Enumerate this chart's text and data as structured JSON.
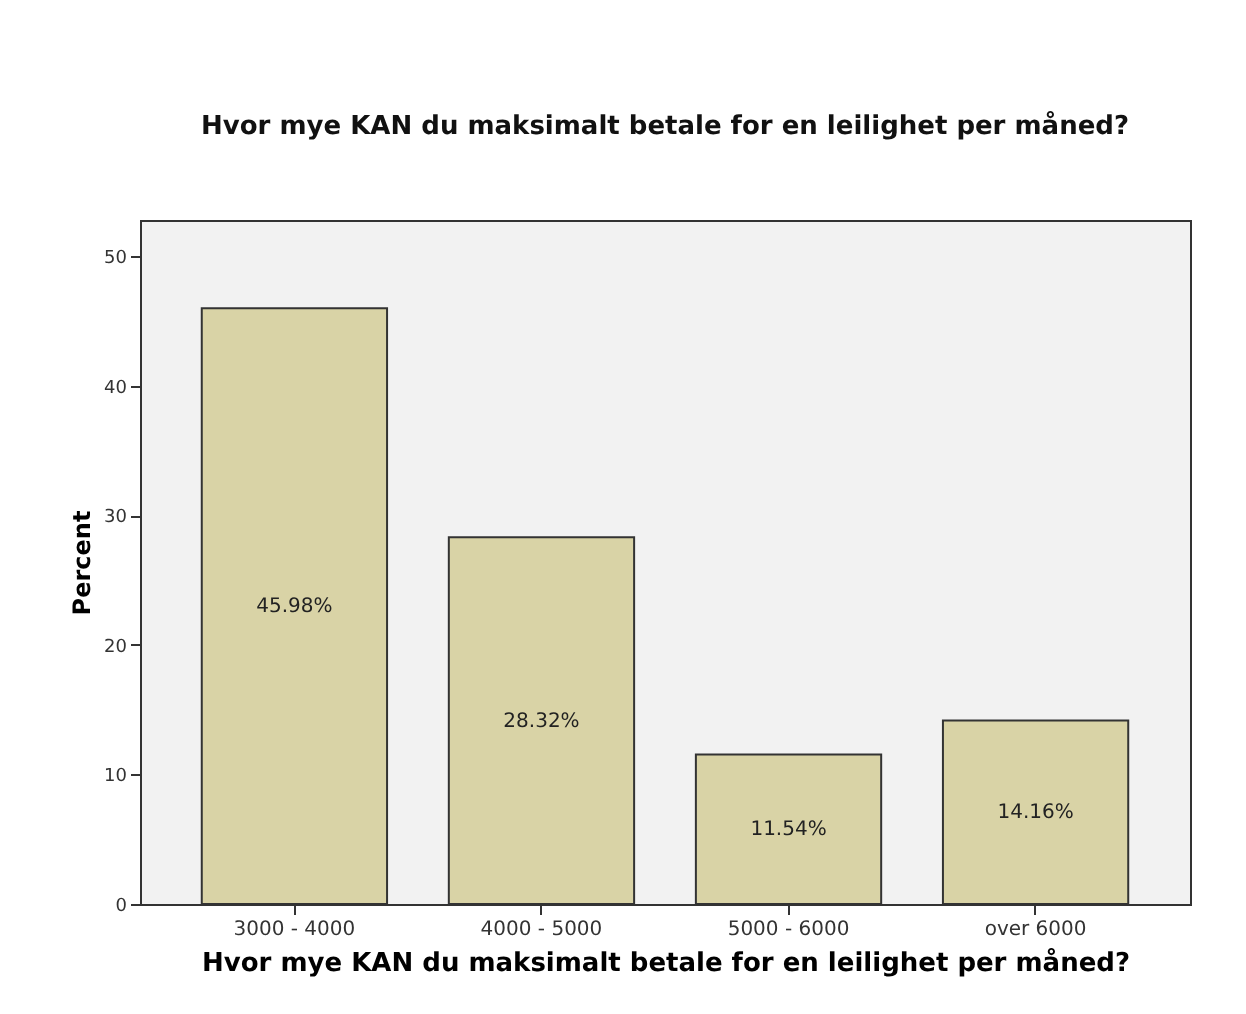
{
  "chart_data": {
    "type": "bar",
    "title": "Hvor mye KAN du maksimalt betale for en leilighet per måned?",
    "xlabel": "Hvor mye KAN du maksimalt betale for en leilighet per måned?",
    "ylabel": "Percent",
    "categories": [
      "3000 - 4000",
      "4000 - 5000",
      "5000 - 6000",
      "over 6000"
    ],
    "values": [
      45.98,
      28.32,
      11.54,
      14.16
    ],
    "value_labels": [
      "45.98%",
      "28.32%",
      "11.54%",
      "14.16%"
    ],
    "color": "#d9d3a6",
    "ylim": [
      0,
      52.8
    ],
    "yticks": [
      0,
      10,
      20,
      30,
      40,
      50
    ],
    "grid": false
  }
}
